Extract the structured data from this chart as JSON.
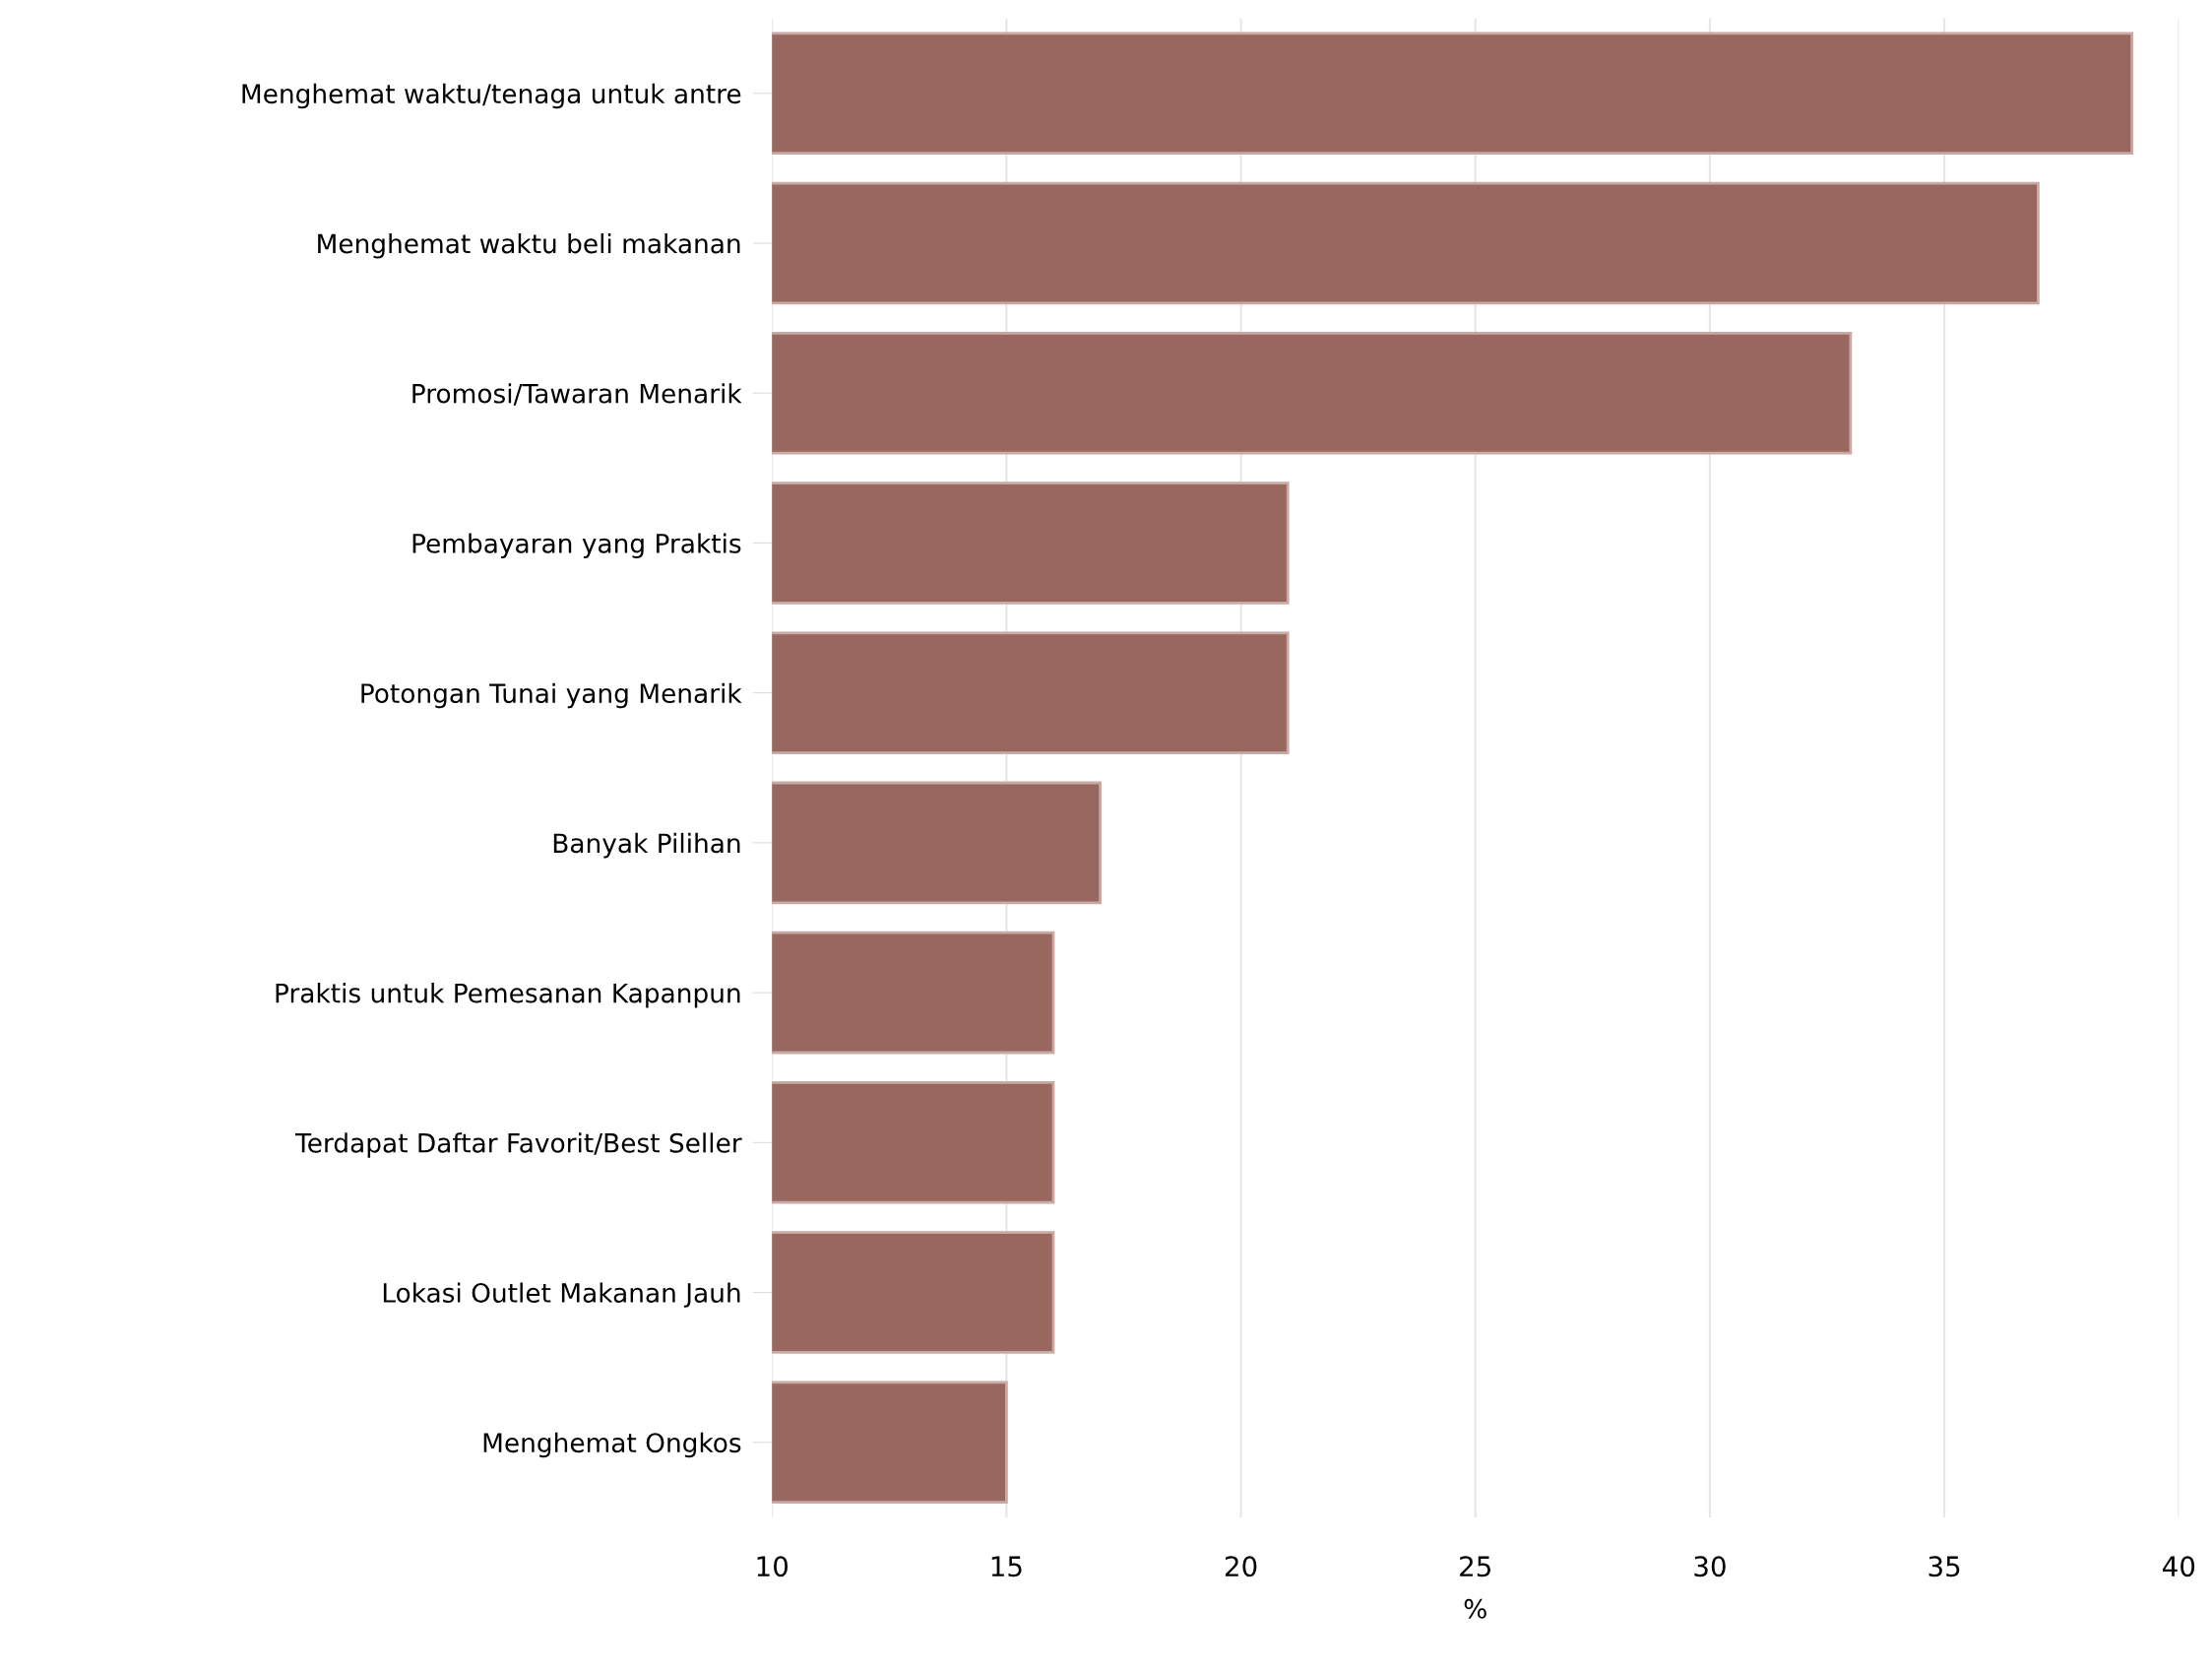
{
  "chart_data": {
    "type": "bar",
    "orientation": "horizontal",
    "xlabel": "%",
    "categories": [
      "Menghemat waktu/tenaga untuk antre",
      "Menghemat waktu beli makanan",
      "Promosi/Tawaran Menarik",
      "Pembayaran yang Praktis",
      "Potongan Tunai yang Menarik",
      "Banyak Pilihan",
      "Praktis untuk Pemesanan Kapanpun",
      "Terdapat Daftar Favorit/Best Seller",
      "Lokasi Outlet Makanan Jauh",
      "Menghemat Ongkos"
    ],
    "values": [
      39,
      37,
      33,
      21,
      21,
      17,
      16,
      16,
      16,
      15
    ],
    "color": "#98675f",
    "xlim": [
      10,
      40
    ],
    "xticks": [
      10,
      15,
      20,
      25,
      30,
      35,
      40
    ],
    "grid": "x"
  }
}
